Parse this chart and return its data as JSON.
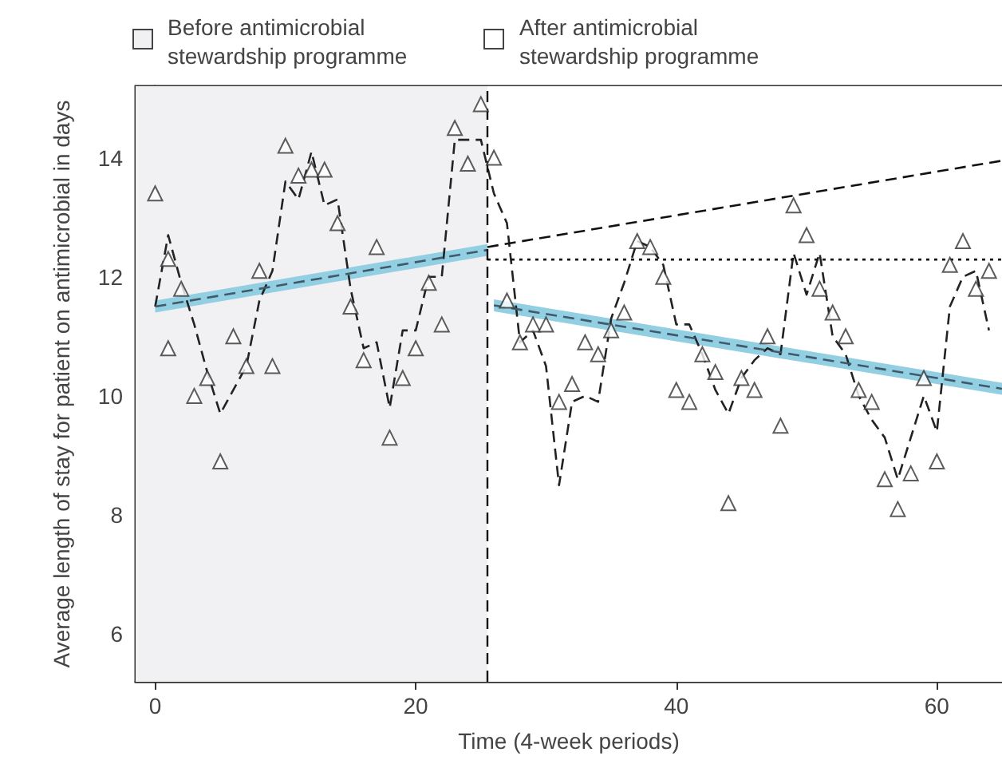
{
  "chart_data": {
    "type": "scatter",
    "xlabel": "Time (4-week periods)",
    "ylabel": "Average length of stay for patient on antimicrobial in days",
    "xlim": [
      -1.5,
      65
    ],
    "xticks": [
      0,
      20,
      40,
      60
    ],
    "ylim": [
      5.2,
      15.2
    ],
    "yticks": [
      6,
      8,
      10,
      12,
      14
    ],
    "legend": "top",
    "marker": "triangle",
    "series": [
      {
        "color": "#333333",
        "x": [
          0,
          1,
          1,
          2,
          3,
          4,
          5,
          6,
          7,
          8,
          9,
          10,
          11,
          12,
          13,
          14,
          15,
          16,
          17,
          18,
          19,
          20,
          21,
          22,
          23,
          24,
          25,
          26,
          27,
          28,
          29,
          30,
          31,
          32,
          33,
          34,
          35,
          36,
          37,
          38,
          39,
          40,
          41,
          42,
          43,
          44,
          45,
          46,
          47,
          48,
          49,
          50,
          51,
          52,
          53,
          54,
          55,
          56,
          57,
          58,
          59,
          60,
          61,
          62,
          63,
          64
        ],
        "values": [
          13.4,
          10.8,
          12.3,
          11.8,
          10.0,
          10.3,
          8.9,
          11.0,
          10.5,
          12.1,
          10.5,
          14.2,
          13.7,
          13.8,
          13.8,
          12.9,
          11.5,
          10.6,
          12.5,
          9.3,
          10.3,
          10.8,
          11.9,
          11.2,
          14.5,
          13.9,
          14.9,
          14.0,
          11.6,
          10.9,
          11.2,
          11.2,
          9.9,
          10.2,
          10.9,
          10.7,
          11.1,
          11.4,
          12.6,
          12.5,
          12.0,
          10.1,
          9.9,
          10.7,
          10.4,
          8.2,
          10.3,
          10.1,
          11.0,
          9.5,
          13.2,
          12.7,
          11.8,
          11.4,
          11.0,
          10.1,
          9.9,
          8.6,
          8.1,
          8.7,
          10.3,
          8.9,
          12.2,
          12.6,
          11.8,
          12.1
        ]
      },
      {
        "type": "line",
        "marker": "none",
        "line_style": "dashed",
        "color": "#222222",
        "x": [
          0,
          1,
          2,
          3,
          4,
          5,
          6,
          7,
          8,
          9,
          10,
          11,
          12,
          13,
          14,
          15,
          16,
          17,
          18,
          19,
          20,
          21,
          22,
          23,
          24,
          25,
          26,
          27,
          28,
          29,
          30,
          31,
          32,
          33,
          34,
          35,
          36,
          37,
          38,
          39,
          40,
          41,
          42,
          43,
          44,
          45,
          46,
          47,
          48,
          49,
          50,
          51,
          52,
          53,
          54,
          55,
          56,
          57,
          58,
          59,
          60,
          61,
          62,
          63,
          64
        ],
        "values": [
          11.5,
          12.7,
          11.9,
          11.2,
          10.4,
          9.7,
          10.1,
          10.5,
          11.6,
          12.1,
          13.6,
          13.3,
          14.1,
          13.2,
          13.3,
          11.8,
          10.8,
          10.9,
          9.8,
          11.1,
          11.1,
          12.0,
          12.0,
          14.3,
          14.3,
          14.3,
          13.4,
          12.9,
          10.9,
          11.1,
          10.5,
          8.5,
          9.9,
          10.0,
          9.9,
          11.3,
          11.9,
          12.6,
          12.5,
          12.2,
          11.2,
          11.2,
          10.7,
          10.1,
          9.7,
          10.3,
          10.6,
          10.8,
          10.7,
          12.4,
          11.7,
          12.4,
          11.0,
          10.7,
          10.0,
          9.6,
          9.3,
          8.6,
          9.3,
          10.0,
          9.4,
          11.5,
          12.0,
          12.1,
          11.1
        ]
      },
      {
        "type": "line",
        "marker": "none",
        "line_style": "dashed",
        "color": "#3f5a68",
        "x": [
          0,
          25.5
        ],
        "values": [
          11.5,
          12.45
        ],
        "lower": [
          11.4,
          12.35
        ],
        "upper": [
          11.6,
          12.55
        ]
      },
      {
        "type": "line",
        "marker": "none",
        "line_style": "dashed",
        "color": "#3f5a68",
        "x": [
          26,
          65
        ],
        "values": [
          11.52,
          10.12
        ],
        "lower": [
          11.42,
          10.02
        ],
        "upper": [
          11.62,
          10.22
        ]
      },
      {
        "type": "line",
        "marker": "none",
        "line_style": "dashed",
        "color": "#111111",
        "x": [
          25.5,
          65
        ],
        "values": [
          12.5,
          13.95
        ]
      },
      {
        "type": "line",
        "marker": "none",
        "line_style": "dotted",
        "color": "#111111",
        "x": [
          25.5,
          65
        ],
        "values": [
          12.29,
          12.29
        ]
      }
    ],
    "ref_lines": [
      {
        "axis": "x",
        "value": 25.5,
        "color": "#111111",
        "line_style": "dashed"
      }
    ],
    "bands": [
      {
        "axis": "x",
        "from": -1.5,
        "to": 25.5,
        "label": "Before antimicrobial stewardship programme",
        "color": "#f1f1f4"
      },
      {
        "axis": "x",
        "from": 25.5,
        "to": 65,
        "label": "After antimicrobial stewardship programme",
        "color": "#ffffff"
      }
    ]
  }
}
